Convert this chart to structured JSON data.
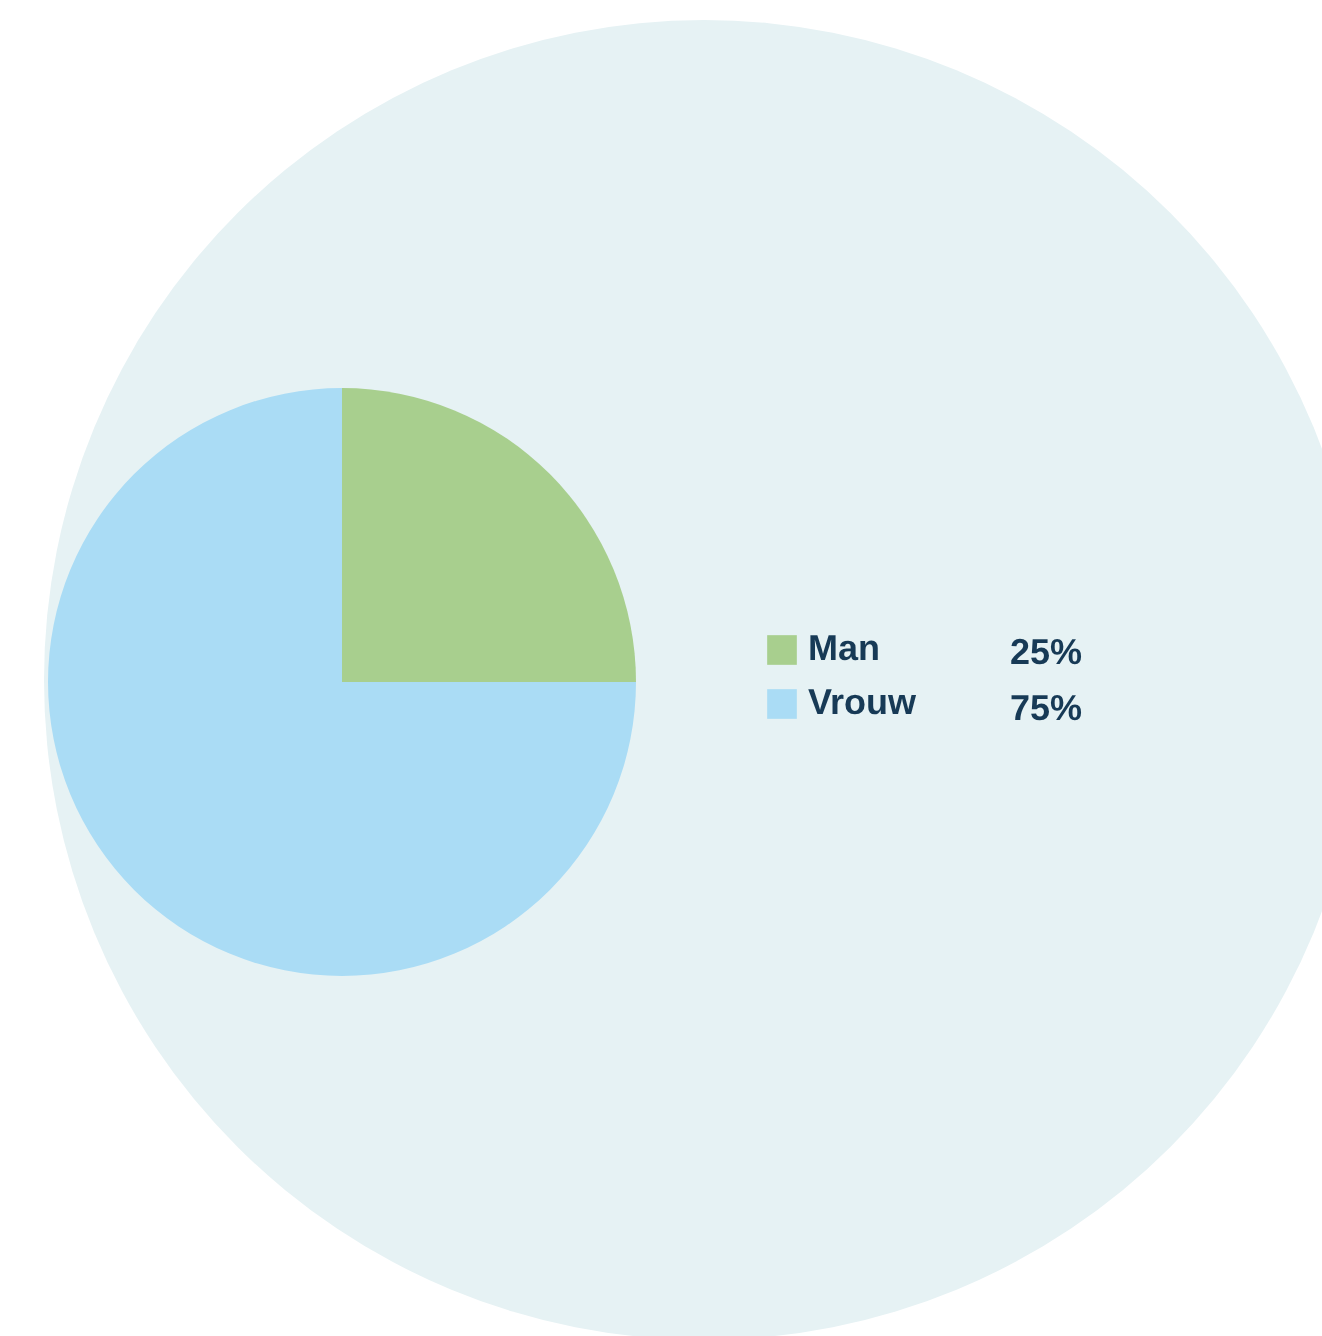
{
  "chart_data": {
    "type": "pie",
    "categories": [
      "Man",
      "Vrouw"
    ],
    "values": [
      25,
      75
    ],
    "colors": [
      "#a8cf8e",
      "#aadcf5"
    ],
    "value_labels": [
      "25%",
      "75%"
    ],
    "legend": "right"
  }
}
